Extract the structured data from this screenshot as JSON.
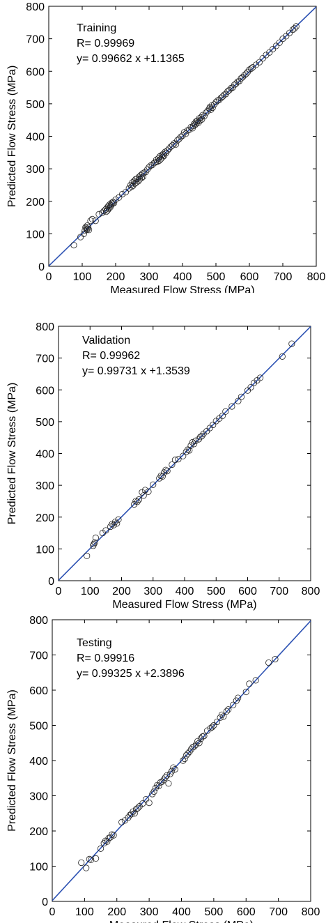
{
  "chart_data": [
    {
      "type": "scatter",
      "title": "",
      "annotations": [
        "Training",
        "R= 0.99969",
        "y= 0.99662  x +1.1365"
      ],
      "xlabel": "Measured Flow Stress (MPa)",
      "ylabel": "Predicted Flow Stress (MPa)",
      "xlim": [
        0,
        800
      ],
      "ylim": [
        0,
        800
      ],
      "xticks": [
        "0",
        "100",
        "200",
        "300",
        "400",
        "500",
        "600",
        "700",
        "800"
      ],
      "yticks": [
        "0",
        "100",
        "200",
        "300",
        "400",
        "500",
        "600",
        "700",
        "800"
      ],
      "fit": {
        "slope": 0.99662,
        "intercept": 1.1365
      },
      "line_color": "#2d52b3",
      "marker": "open-circle",
      "series": [
        {
          "x": [
            75,
            95,
            105,
            108,
            110,
            112,
            114,
            115,
            116,
            118,
            120,
            125,
            130,
            140,
            150,
            160,
            165,
            170,
            172,
            174,
            176,
            178,
            180,
            182,
            184,
            186,
            188,
            190,
            192,
            195,
            200,
            210,
            220,
            230,
            240,
            245,
            248,
            250,
            252,
            255,
            258,
            260,
            262,
            265,
            268,
            270,
            272,
            275,
            278,
            280,
            282,
            285,
            290,
            295,
            300,
            305,
            310,
            315,
            320,
            322,
            325,
            328,
            330,
            332,
            335,
            338,
            340,
            342,
            345,
            348,
            350,
            355,
            360,
            365,
            370,
            375,
            380,
            385,
            390,
            395,
            400,
            405,
            410,
            415,
            420,
            425,
            430,
            432,
            435,
            438,
            440,
            442,
            445,
            448,
            450,
            452,
            455,
            458,
            460,
            465,
            470,
            475,
            480,
            482,
            485,
            488,
            490,
            495,
            500,
            505,
            510,
            515,
            520,
            525,
            530,
            535,
            540,
            545,
            550,
            555,
            560,
            565,
            570,
            575,
            580,
            585,
            590,
            595,
            600,
            605,
            610,
            620,
            630,
            640,
            650,
            660,
            670,
            680,
            690,
            700,
            710,
            720,
            730,
            735,
            740
          ],
          "y": [
            65,
            90,
            100,
            110,
            120,
            118,
            112,
            125,
            115,
            120,
            112,
            140,
            145,
            140,
            160,
            165,
            170,
            175,
            168,
            180,
            172,
            185,
            178,
            190,
            182,
            188,
            195,
            192,
            198,
            195,
            205,
            212,
            222,
            228,
            240,
            250,
            245,
            258,
            248,
            262,
            255,
            268,
            258,
            270,
            262,
            275,
            268,
            280,
            272,
            285,
            276,
            288,
            290,
            298,
            305,
            310,
            312,
            318,
            320,
            328,
            322,
            332,
            325,
            338,
            330,
            342,
            336,
            345,
            340,
            352,
            348,
            356,
            362,
            368,
            372,
            378,
            375,
            388,
            392,
            398,
            402,
            412,
            408,
            418,
            420,
            428,
            425,
            432,
            438,
            435,
            445,
            440,
            448,
            442,
            455,
            448,
            458,
            452,
            465,
            462,
            472,
            478,
            485,
            490,
            482,
            495,
            488,
            498,
            505,
            510,
            512,
            518,
            522,
            528,
            530,
            538,
            542,
            548,
            550,
            558,
            562,
            568,
            570,
            578,
            582,
            588,
            592,
            598,
            605,
            608,
            612,
            620,
            628,
            640,
            650,
            658,
            668,
            678,
            688,
            700,
            708,
            718,
            728,
            732,
            738
          ]
        }
      ]
    },
    {
      "type": "scatter",
      "title": "",
      "annotations": [
        "Validation",
        "R= 0.99962",
        "y= 0.99731  x +1.3539"
      ],
      "xlabel": "Measured Flow Stress (MPa)",
      "ylabel": "Predicted Flow Stress (MPa)",
      "xlim": [
        0,
        800
      ],
      "ylim": [
        0,
        800
      ],
      "xticks": [
        "0",
        "100",
        "200",
        "300",
        "400",
        "500",
        "600",
        "700",
        "800"
      ],
      "yticks": [
        "0",
        "100",
        "200",
        "300",
        "400",
        "500",
        "600",
        "700",
        "800"
      ],
      "fit": {
        "slope": 0.99731,
        "intercept": 1.3539
      },
      "line_color": "#2d52b3",
      "marker": "open-circle",
      "series": [
        {
          "x": [
            90,
            110,
            112,
            115,
            118,
            140,
            150,
            165,
            170,
            175,
            180,
            185,
            190,
            240,
            245,
            250,
            255,
            265,
            270,
            275,
            285,
            300,
            320,
            325,
            330,
            335,
            340,
            345,
            360,
            370,
            380,
            395,
            405,
            410,
            415,
            420,
            425,
            430,
            435,
            445,
            450,
            455,
            460,
            470,
            480,
            490,
            500,
            510,
            520,
            530,
            550,
            570,
            580,
            600,
            610,
            620,
            630,
            640,
            710,
            740
          ],
          "y": [
            78,
            110,
            115,
            120,
            135,
            150,
            158,
            170,
            178,
            175,
            185,
            180,
            192,
            240,
            250,
            248,
            255,
            278,
            268,
            285,
            280,
            302,
            322,
            330,
            328,
            340,
            348,
            345,
            365,
            380,
            382,
            392,
            405,
            412,
            410,
            425,
            435,
            430,
            440,
            445,
            452,
            455,
            462,
            470,
            480,
            490,
            502,
            510,
            518,
            532,
            548,
            565,
            578,
            598,
            608,
            622,
            630,
            638,
            705,
            745
          ]
        }
      ]
    },
    {
      "type": "scatter",
      "title": "",
      "annotations": [
        "Testing",
        "R= 0.99916",
        "y= 0.99325  x +2.3896"
      ],
      "xlabel": "Measured Flow Stress (MPa)",
      "ylabel": "Predicted Flow Stress (MPa)",
      "xlim": [
        0,
        800
      ],
      "ylim": [
        0,
        800
      ],
      "xticks": [
        "0",
        "100",
        "200",
        "300",
        "400",
        "500",
        "600",
        "700",
        "800"
      ],
      "yticks": [
        "0",
        "100",
        "200",
        "300",
        "400",
        "500",
        "600",
        "700",
        "800"
      ],
      "fit": {
        "slope": 0.99325,
        "intercept": 2.3896
      },
      "line_color": "#2d52b3",
      "marker": "open-circle",
      "series": [
        {
          "x": [
            90,
            105,
            115,
            120,
            135,
            150,
            160,
            165,
            170,
            175,
            180,
            185,
            190,
            215,
            225,
            235,
            240,
            245,
            250,
            255,
            260,
            265,
            270,
            280,
            290,
            300,
            310,
            315,
            320,
            325,
            330,
            335,
            340,
            345,
            350,
            355,
            360,
            365,
            370,
            375,
            380,
            405,
            410,
            415,
            420,
            425,
            430,
            435,
            440,
            445,
            450,
            455,
            460,
            465,
            470,
            480,
            490,
            495,
            500,
            510,
            520,
            525,
            530,
            540,
            545,
            560,
            570,
            575,
            600,
            610,
            630,
            670,
            690
          ],
          "y": [
            110,
            95,
            120,
            118,
            122,
            150,
            165,
            172,
            170,
            180,
            182,
            190,
            188,
            225,
            230,
            238,
            245,
            248,
            255,
            250,
            262,
            265,
            270,
            278,
            290,
            280,
            305,
            312,
            322,
            330,
            328,
            338,
            340,
            345,
            352,
            358,
            335,
            362,
            370,
            380,
            375,
            400,
            405,
            415,
            420,
            425,
            432,
            438,
            440,
            445,
            455,
            450,
            462,
            468,
            470,
            485,
            492,
            495,
            500,
            510,
            522,
            530,
            525,
            540,
            545,
            558,
            570,
            578,
            595,
            618,
            628,
            678,
            688
          ]
        }
      ]
    }
  ]
}
